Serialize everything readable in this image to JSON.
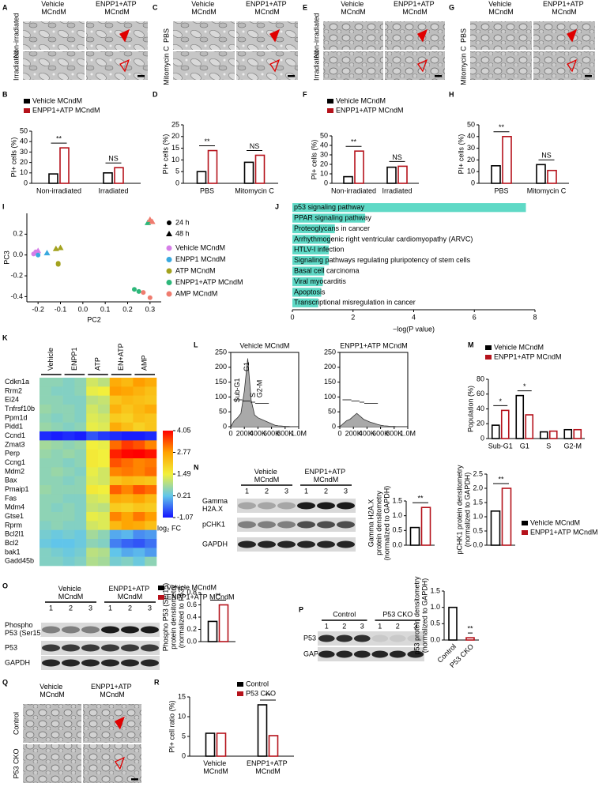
{
  "image_panels": [
    {
      "label": "A",
      "columns": [
        "Vehicle MCndM",
        "ENPP1+ATP MCndM"
      ],
      "rows": [
        "Non-irradiated",
        "Irradiated"
      ]
    },
    {
      "label": "C",
      "columns": [
        "Vehicle MCndM",
        "ENPP1+ATP MCndM"
      ],
      "rows": [
        "PBS",
        "Mitomycin C"
      ]
    },
    {
      "label": "E",
      "columns": [
        "Vehicle MCndM",
        "ENPP1+ATP MCndM"
      ],
      "rows": [
        "Non-irradiated",
        "Irradiated"
      ]
    },
    {
      "label": "G",
      "columns": [
        "Vehicle MCndM",
        "ENPP1+ATP MCndM"
      ],
      "rows": [
        "PBS",
        "Mitomycin C"
      ]
    },
    {
      "label": "Q",
      "columns": [
        "Vehicle MCndM",
        "ENPP1+ATP MCndM"
      ],
      "rows": [
        "Control",
        "P53 CKO"
      ]
    }
  ],
  "blots": [
    {
      "label": "N",
      "groups": [
        "Vehicle MCndM",
        "ENPP1+ATP MCndM"
      ],
      "lanes": [
        1,
        2,
        3,
        1,
        2,
        3
      ],
      "rows": [
        "Gamma H2A.X",
        "pCHK1",
        "GAPDH"
      ]
    },
    {
      "groups": [
        "Vehicle MCndM",
        "ENPP1+ATP MCndM"
      ],
      "lanes": [
        1,
        2,
        3,
        1,
        2,
        3
      ],
      "rows": [
        "Phospho P53 (Ser15)",
        "P53",
        "GAPDH"
      ]
    },
    {
      "label": "P",
      "groups": [
        "Control",
        "P53 CKO"
      ],
      "lanes": [
        1,
        2,
        3,
        1,
        2,
        3
      ],
      "rows": [
        "P53",
        "GAPDH"
      ]
    }
  ],
  "chart_data": [
    {
      "type": "bar",
      "label": "B",
      "ylabel": [
        "PI+ cells (%)"
      ],
      "categories": [
        "Non-irradiated",
        "Irradiated"
      ],
      "series": [
        {
          "name": "Vehicle MCndM",
          "color": "#000000",
          "values": [
            9,
            10
          ]
        },
        {
          "name": "ENPP1+ATP MCndM",
          "color": "#b5121b",
          "values": [
            34,
            15
          ]
        }
      ],
      "significance": [
        "**",
        "NS"
      ],
      "ylim": [
        0,
        50
      ],
      "yticks": [
        0,
        10,
        20,
        30,
        40,
        50
      ],
      "legend": true
    },
    {
      "type": "bar",
      "label": "D",
      "ylabel": [
        "PI+ cells (%)"
      ],
      "categories": [
        "PBS",
        "Mitomycin C"
      ],
      "series": [
        {
          "color": "#000000",
          "values": [
            5,
            9
          ]
        },
        {
          "color": "#b5121b",
          "values": [
            14,
            12
          ]
        }
      ],
      "significance": [
        "**",
        "NS"
      ],
      "ylim": [
        0,
        25
      ],
      "yticks": [
        0,
        5,
        10,
        15,
        20,
        25
      ]
    },
    {
      "type": "bar",
      "label": "F",
      "ylabel": [
        "PI+ cells (%)"
      ],
      "categories": [
        "Non-irradiated",
        "Irradiated"
      ],
      "series": [
        {
          "name": "Vehicle MCndM",
          "color": "#000000",
          "values": [
            7,
            17
          ]
        },
        {
          "name": "ENPP1+ATP MCndM",
          "color": "#b5121b",
          "values": [
            34,
            18
          ]
        }
      ],
      "significance": [
        "**",
        "NS"
      ],
      "ylim": [
        0,
        50
      ],
      "yticks": [
        0,
        10,
        20,
        30,
        40,
        50
      ],
      "legend": true
    },
    {
      "type": "bar",
      "label": "H",
      "ylabel": [
        "PI+ cells (%)"
      ],
      "categories": [
        "PBS",
        "Mitomycin C"
      ],
      "series": [
        {
          "color": "#000000",
          "values": [
            15,
            16
          ]
        },
        {
          "color": "#b5121b",
          "values": [
            40,
            11
          ]
        }
      ],
      "significance": [
        "**",
        "NS"
      ],
      "ylim": [
        0,
        50
      ],
      "yticks": [
        0,
        10,
        20,
        30,
        40,
        50
      ]
    },
    {
      "type": "scatter",
      "label": "I",
      "xlabel": "PC2",
      "ylabel": "PC3",
      "xlim": [
        -0.25,
        0.35
      ],
      "xticks": [
        -0.2,
        -0.1,
        {
          "value": 0,
          "label": "0.0"
        },
        0.1,
        0.2,
        0.3
      ],
      "ylim": [
        -0.45,
        0.4
      ],
      "yticks": [
        -0.4,
        -0.2,
        {
          "value": 0,
          "label": "0.0"
        },
        0.2
      ],
      "marker_legend": [
        {
          "name": "24 h",
          "marker": "circle"
        },
        {
          "name": "48 h",
          "marker": "triangle"
        }
      ],
      "series": [
        {
          "name": "Vehicle MCndM",
          "color": "#d67ee8",
          "x": [
            -0.21,
            -0.2,
            -0.22
          ],
          "y": [
            0.03,
            0.04,
            0.01
          ],
          "markers": [
            "circle",
            "triangle",
            "circle"
          ]
        },
        {
          "name": "ENPP1 MCndM",
          "color": "#39a9df",
          "x": [
            -0.2,
            -0.16
          ],
          "y": [
            0.0,
            0.02
          ],
          "markers": [
            "circle",
            "triangle"
          ]
        },
        {
          "name": "ATP MCndM",
          "color": "#a3a21e",
          "x": [
            -0.12,
            -0.1,
            -0.11,
            -0.11
          ],
          "y": [
            0.06,
            0.07,
            -0.08,
            -0.09
          ],
          "markers": [
            "triangle",
            "triangle",
            "circle",
            "circle"
          ]
        },
        {
          "name": "ENPP1+ATP MCndM",
          "color": "#2db77a",
          "x": [
            0.23,
            0.25,
            0.29,
            0.3
          ],
          "y": [
            -0.33,
            -0.35,
            0.31,
            0.33
          ],
          "markers": [
            "circle",
            "circle",
            "triangle",
            "triangle"
          ]
        },
        {
          "name": "AMP MCndM",
          "color": "#ef7c6f",
          "x": [
            0.27,
            0.3,
            0.31,
            0.3
          ],
          "y": [
            -0.36,
            -0.41,
            0.32,
            0.34
          ],
          "markers": [
            "circle",
            "circle",
            "triangle",
            "triangle"
          ]
        }
      ]
    },
    {
      "type": "hbar",
      "label": "J",
      "xlabel": "−log(P value)",
      "color": "#5fd9c6",
      "categories": [
        "p53 signaling pathway",
        "PPAR signaling pathway",
        "Proteoglycans in cancer",
        "Arrhythmogenic right ventricular cardiomyopathy (ARVC)",
        "HTLV-I infection",
        "Signaling pathways regulating pluripotency of stem cells",
        "Basal cell carcinoma",
        "Viral myocarditis",
        "Apoptosis",
        "Transcriptional misregulation in cancer"
      ],
      "values": [
        7.7,
        2.4,
        1.4,
        1.25,
        1.2,
        1.2,
        1.05,
        1.0,
        0.95,
        0.85
      ],
      "xlim": [
        0,
        8
      ],
      "xticks": [
        0,
        2,
        4,
        6,
        8
      ]
    },
    {
      "type": "heatmap",
      "label": "K",
      "categories": [
        "Vehicle",
        null,
        "ENPP1",
        null,
        "ATP",
        null,
        "EN+ATP",
        null,
        "AMP",
        null
      ],
      "rows": [
        "Cdkn1a",
        "Rrm2",
        "Ei24",
        "Tnfrsf10b",
        "Ppm1d",
        "Pidd1",
        "Ccnd1",
        "Zmat3",
        "Perp",
        "Ccng1",
        "Mdm2",
        "Bax",
        "Pmaip1",
        "Fas",
        "Mdm4",
        "Gtse1",
        "Rprm",
        "Bcl2l1",
        "Bcl2",
        "bak1",
        "Gadd45b"
      ],
      "values": [
        [
          0.6,
          0.6,
          0.5,
          0.6,
          1.2,
          1.0,
          2.6,
          2.4,
          2.8,
          2.6
        ],
        [
          0.6,
          0.5,
          0.5,
          0.6,
          1.4,
          1.5,
          2.8,
          2.7,
          2.5,
          2.3
        ],
        [
          0.6,
          0.6,
          0.5,
          0.5,
          1.0,
          1.1,
          2.2,
          2.4,
          2.3,
          2.2
        ],
        [
          0.7,
          0.6,
          0.6,
          0.5,
          1.2,
          1.0,
          2.5,
          2.2,
          2.4,
          2.6
        ],
        [
          0.6,
          0.5,
          0.6,
          0.5,
          1.3,
          1.2,
          2.1,
          2.0,
          2.3,
          2.2
        ],
        [
          0.7,
          0.6,
          0.5,
          0.6,
          1.4,
          1.3,
          2.6,
          2.3,
          2.0,
          2.2
        ],
        [
          -0.9,
          -1.0,
          -0.9,
          -1.0,
          -0.6,
          -0.8,
          -0.9,
          -1.0,
          -1.0,
          -0.9
        ],
        [
          0.8,
          0.7,
          0.6,
          0.7,
          1.5,
          1.4,
          3.2,
          3.6,
          3.4,
          3.0
        ],
        [
          0.7,
          0.6,
          0.7,
          0.6,
          1.6,
          1.5,
          3.8,
          4.0,
          4.05,
          3.9
        ],
        [
          0.6,
          0.6,
          0.5,
          0.6,
          1.6,
          1.5,
          3.4,
          3.2,
          3.0,
          3.1
        ],
        [
          0.6,
          0.7,
          0.6,
          0.5,
          1.4,
          1.2,
          3.0,
          3.1,
          3.0,
          3.2
        ],
        [
          0.6,
          0.6,
          0.5,
          0.6,
          1.3,
          1.2,
          2.2,
          2.4,
          2.3,
          2.2
        ],
        [
          0.7,
          0.6,
          0.6,
          0.6,
          1.6,
          1.5,
          3.3,
          3.0,
          3.4,
          3.2
        ],
        [
          0.6,
          0.6,
          0.5,
          0.5,
          1.2,
          1.3,
          2.6,
          2.5,
          2.7,
          2.4
        ],
        [
          0.6,
          0.5,
          0.6,
          0.5,
          1.1,
          1.0,
          2.1,
          2.0,
          2.2,
          2.1
        ],
        [
          0.6,
          0.6,
          0.6,
          0.5,
          1.4,
          1.3,
          3.0,
          2.7,
          3.1,
          2.8
        ],
        [
          0.5,
          0.6,
          0.5,
          0.5,
          1.2,
          1.3,
          2.4,
          2.7,
          2.6,
          2.3
        ],
        [
          0.4,
          0.3,
          0.4,
          0.3,
          0.8,
          0.6,
          0.0,
          0.1,
          -0.2,
          -0.1
        ],
        [
          0.3,
          0.2,
          0.2,
          0.3,
          0.6,
          0.5,
          -0.3,
          -0.5,
          -0.6,
          -0.4
        ],
        [
          0.5,
          0.4,
          0.3,
          0.4,
          1.0,
          0.9,
          0.2,
          0.0,
          0.1,
          -0.1
        ],
        [
          0.5,
          0.5,
          0.4,
          0.5,
          0.9,
          0.8,
          0.4,
          0.5,
          0.3,
          0.6
        ]
      ],
      "clim": [
        -1.07,
        4.05
      ],
      "cticks": [
        4.05,
        2.77,
        1.49,
        0.21,
        -1.07
      ],
      "clabel": "log₂ FC",
      "colormap": [
        "#1414ff",
        "#62c6ea",
        "#f2f03c",
        "#ffa200",
        "#ff0000"
      ]
    },
    {
      "type": "area",
      "label": "L",
      "title": "Vehicle MCndM",
      "gates": [
        "Sub-G1",
        "G1",
        "S",
        "G2-M"
      ],
      "x": [
        0,
        50000,
        100000,
        150000,
        200000,
        250000,
        300000,
        350000,
        400000,
        450000,
        500000,
        550000,
        600000,
        650000,
        700000,
        750000,
        800000,
        850000,
        900000,
        950000,
        1000000
      ],
      "values": [
        0,
        20,
        30,
        45,
        120,
        230,
        90,
        40,
        30,
        25,
        20,
        15,
        10,
        5,
        3,
        2,
        1,
        1,
        0,
        0,
        0
      ],
      "xlim": [
        0,
        1000000
      ],
      "xticks": [
        0,
        {
          "value": 200000,
          "label": "200K"
        },
        {
          "value": 400000,
          "label": "400K"
        },
        {
          "value": 600000,
          "label": "600K"
        },
        {
          "value": 800000,
          "label": "800K"
        },
        {
          "value": 1000000,
          "label": "1.0M"
        }
      ],
      "ylim": [
        0,
        250
      ],
      "yticks": [
        0,
        50,
        100,
        150,
        200,
        250
      ]
    },
    {
      "type": "area",
      "title": "ENPP1+ATP MCndM",
      "x": [
        0,
        50000,
        100000,
        150000,
        200000,
        250000,
        300000,
        350000,
        400000,
        450000,
        500000,
        550000,
        600000,
        650000,
        700000,
        750000,
        800000,
        850000,
        900000,
        950000,
        1000000
      ],
      "values": [
        0,
        10,
        20,
        25,
        35,
        45,
        35,
        25,
        20,
        15,
        12,
        8,
        5,
        3,
        2,
        1,
        1,
        0,
        0,
        0,
        0
      ],
      "xlim": [
        0,
        1000000
      ],
      "xticks": [
        0,
        {
          "value": 200000,
          "label": "200K"
        },
        {
          "value": 400000,
          "label": "400K"
        },
        {
          "value": 600000,
          "label": "600K"
        },
        {
          "value": 800000,
          "label": "800K"
        },
        {
          "value": 1000000,
          "label": "1.0M"
        }
      ],
      "ylim": [
        0,
        250
      ],
      "yticks": [
        0,
        50,
        100,
        150,
        200,
        250
      ]
    },
    {
      "type": "bar",
      "label": "M",
      "ylabel": [
        "Population (%)"
      ],
      "categories": [
        "Sub-G1",
        "G1",
        "S",
        "G2-M"
      ],
      "series": [
        {
          "name": "Vehicle MCndM",
          "color": "#000000",
          "values": [
            18,
            58,
            9,
            12
          ]
        },
        {
          "name": "ENPP1+ATP MCndM",
          "color": "#b5121b",
          "values": [
            38,
            32,
            10,
            12
          ]
        }
      ],
      "significance": [
        "*",
        "*",
        null,
        null
      ],
      "ylim": [
        0,
        80
      ],
      "yticks": [
        0,
        20,
        40,
        60,
        80
      ],
      "legend": true
    },
    {
      "type": "bar",
      "ylabel": [
        "Gamma H2A.X",
        "protein densitometry",
        "(normalized to GAPDH)"
      ],
      "categories": [
        null
      ],
      "series": [
        {
          "color": "#000000",
          "values": [
            0.6
          ]
        },
        {
          "color": "#b5121b",
          "values": [
            1.28
          ]
        }
      ],
      "significance": [
        "**"
      ],
      "ylim": [
        0,
        1.5
      ],
      "yticks": [
        {
          "value": 0,
          "label": "0.0"
        },
        0.5,
        {
          "value": 1,
          "label": "1.0"
        },
        1.5
      ]
    },
    {
      "type": "bar",
      "ylabel": [
        "pCHK1 protein densitometry",
        "(normalized to GAPDH)"
      ],
      "categories": [
        null
      ],
      "series": [
        {
          "name": "Vehicle MCndM",
          "color": "#000000",
          "values": [
            1.2
          ]
        },
        {
          "name": "ENPP1+ATP MCndM",
          "color": "#b5121b",
          "values": [
            2.0
          ]
        }
      ],
      "significance": [
        "**"
      ],
      "ylim": [
        0,
        2.5
      ],
      "yticks": [
        {
          "value": 0,
          "label": "0.0"
        },
        0.5,
        {
          "value": 1,
          "label": "1.0"
        },
        1.5,
        {
          "value": 2,
          "label": "2.0"
        },
        2.5
      ],
      "legend": true
    },
    {
      "type": "bar",
      "label": "O",
      "ylabel": [
        "Phospho P53 (Ser15)",
        "protein densitometry",
        "(normalized to P53)"
      ],
      "categories": [
        null
      ],
      "series": [
        {
          "name": "Vehicle MCndM",
          "color": "#000000",
          "values": [
            0.33
          ]
        },
        {
          "name": "ENPP1+ATP MCndM",
          "color": "#b5121b",
          "values": [
            0.6
          ]
        }
      ],
      "significance": [
        "**"
      ],
      "ylim": [
        0,
        0.8
      ],
      "yticks": [
        {
          "value": 0,
          "label": "0.0"
        },
        0.2,
        0.4,
        0.6,
        0.8
      ],
      "legend": true
    },
    {
      "type": "bar",
      "ylabel": [
        "p53 protein densitometry",
        "(normalized to GAPDH)"
      ],
      "categories": [
        "Control",
        "P53 CKO"
      ],
      "values": [
        1.0,
        0.07
      ],
      "colors": [
        "#000000",
        "#b5121b"
      ],
      "significance": [
        null,
        "**"
      ],
      "ylim": [
        0,
        1.5
      ],
      "yticks": [
        {
          "value": 0,
          "label": "0.0"
        },
        0.5,
        {
          "value": 1,
          "label": "1.0"
        },
        1.5
      ]
    },
    {
      "type": "bar",
      "label": "R",
      "ylabel": [
        "PI+ cell ratio (%)"
      ],
      "categories": [
        "Vehicle MCndM",
        "ENPP1+ATP MCndM"
      ],
      "series": [
        {
          "name": "Control",
          "color": "#000000",
          "values": [
            5.8,
            13
          ]
        },
        {
          "name": "P53 CKO",
          "color": "#b5121b",
          "values": [
            5.8,
            5.2
          ]
        }
      ],
      "significance": [
        null,
        "**"
      ],
      "ylim": [
        0,
        15
      ],
      "yticks": [
        0,
        5,
        10,
        15
      ],
      "legend": true
    }
  ]
}
